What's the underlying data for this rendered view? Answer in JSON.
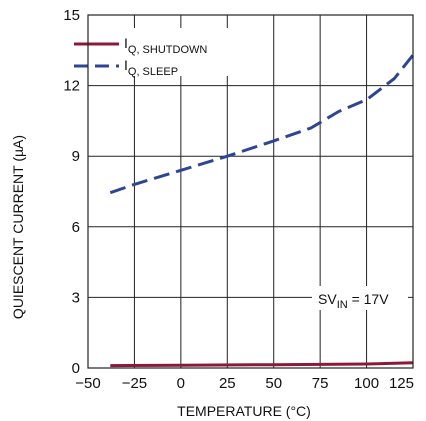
{
  "chart_data": {
    "type": "line",
    "xlabel": "TEMPERATURE (°C)",
    "ylabel": "QUIESCENT CURRENT (µA)",
    "xlim": [
      -50,
      125
    ],
    "ylim": [
      0,
      15
    ],
    "x_ticks": [
      -50,
      -25,
      0,
      25,
      50,
      75,
      100,
      125
    ],
    "y_ticks": [
      0,
      3,
      6,
      9,
      12,
      15
    ],
    "grid": true,
    "legend_position": "top-left",
    "series": [
      {
        "name": "IQ, SHUTDOWN",
        "legend": {
          "main": "I",
          "sub": "Q, SHUTDOWN"
        },
        "color": "#8b1a3a",
        "style": "solid",
        "x": [
          -38,
          0,
          50,
          100,
          125
        ],
        "y": [
          0.1,
          0.12,
          0.14,
          0.17,
          0.22
        ]
      },
      {
        "name": "IQ, SLEEP",
        "legend": {
          "main": "I",
          "sub": "Q, SLEEP"
        },
        "color": "#2e4593",
        "style": "dashed",
        "x": [
          -38,
          -25,
          0,
          25,
          50,
          70,
          85,
          100,
          115,
          125
        ],
        "y": [
          7.45,
          7.8,
          8.4,
          9.0,
          9.65,
          10.2,
          10.9,
          11.4,
          12.3,
          13.3
        ]
      }
    ],
    "annotation": {
      "main": "SV",
      "sub": "IN",
      "suffix": " = 17V"
    }
  }
}
